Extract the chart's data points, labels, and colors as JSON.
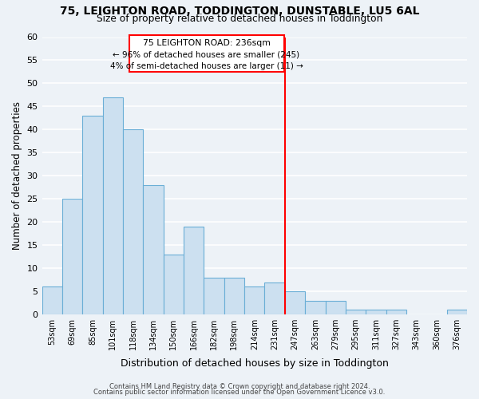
{
  "title": "75, LEIGHTON ROAD, TODDINGTON, DUNSTABLE, LU5 6AL",
  "subtitle": "Size of property relative to detached houses in Toddington",
  "xlabel": "Distribution of detached houses by size in Toddington",
  "ylabel": "Number of detached properties",
  "categories": [
    "53sqm",
    "69sqm",
    "85sqm",
    "101sqm",
    "118sqm",
    "134sqm",
    "150sqm",
    "166sqm",
    "182sqm",
    "198sqm",
    "214sqm",
    "231sqm",
    "247sqm",
    "263sqm",
    "279sqm",
    "295sqm",
    "311sqm",
    "327sqm",
    "343sqm",
    "360sqm",
    "376sqm"
  ],
  "values": [
    6,
    25,
    43,
    47,
    40,
    28,
    13,
    19,
    8,
    8,
    6,
    7,
    5,
    3,
    3,
    1,
    1,
    1,
    0,
    0,
    1
  ],
  "bar_color": "#cce0f0",
  "bar_edge_color": "#6aaed6",
  "red_line_index": 11.5,
  "annotation_title": "75 LEIGHTON ROAD: 236sqm",
  "annotation_line1": "← 96% of detached houses are smaller (245)",
  "annotation_line2": "4% of semi-detached houses are larger (11) →",
  "ylim": [
    0,
    60
  ],
  "yticks": [
    0,
    5,
    10,
    15,
    20,
    25,
    30,
    35,
    40,
    45,
    50,
    55,
    60
  ],
  "background_color": "#edf2f7",
  "grid_color": "#ffffff",
  "footer1": "Contains HM Land Registry data © Crown copyright and database right 2024.",
  "footer2": "Contains public sector information licensed under the Open Government Licence v3.0."
}
